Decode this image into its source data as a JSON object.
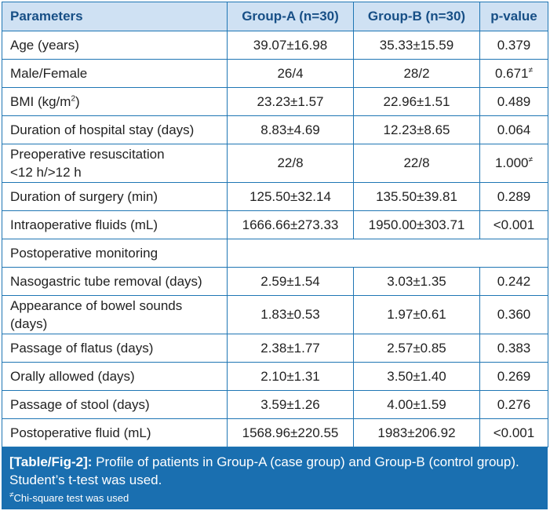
{
  "table": {
    "headers": [
      "Parameters",
      "Group-A (n=30)",
      "Group-B (n=30)",
      "p-value"
    ],
    "rows": [
      {
        "param": "Age (years)",
        "a": "39.07±16.98",
        "b": "35.33±15.59",
        "p": "0.379"
      },
      {
        "param": "Male/Female",
        "a": "26/4",
        "b": "28/2",
        "p": "0.671",
        "p_mark": "≠"
      },
      {
        "param_pre": "BMI (kg/m",
        "param_sup": "2",
        "param_post": ")",
        "a": "23.23±1.57",
        "b": "22.96±1.51",
        "p": "0.489"
      },
      {
        "param": "Duration of hospital stay (days)",
        "a": "8.83±4.69",
        "b": "12.23±8.65",
        "p": "0.064"
      },
      {
        "param_line1": "Preoperative resuscitation",
        "param_line2": "<12 h/>12 h",
        "a": "22/8",
        "b": "22/8",
        "p": "1.000",
        "p_mark": "≠"
      },
      {
        "param": "Duration of surgery (min)",
        "a": "125.50±32.14",
        "b": "135.50±39.81",
        "p": "0.289"
      },
      {
        "param": "Intraoperative fluids (mL)",
        "a": "1666.66±273.33",
        "b": "1950.00±303.71",
        "p": "<0.001"
      },
      {
        "section": "Postoperative monitoring"
      },
      {
        "param": "Nasogastric tube removal (days)",
        "a": "2.59±1.54",
        "b": "3.03±1.35",
        "p": "0.242"
      },
      {
        "param_line1": "Appearance of bowel sounds",
        "param_line2": "(days)",
        "a": "1.83±0.53",
        "b": "1.97±0.61",
        "p": "0.360"
      },
      {
        "param": "Passage of flatus (days)",
        "a": "2.38±1.77",
        "b": "2.57±0.85",
        "p": "0.383"
      },
      {
        "param": "Orally allowed (days)",
        "a": "2.10±1.31",
        "b": "3.50±1.40",
        "p": "0.269"
      },
      {
        "param": "Passage of stool (days)",
        "a": "3.59±1.26",
        "b": "4.00±1.59",
        "p": "0.276"
      },
      {
        "param": "Postoperative fluid (mL)",
        "a": "1568.96±220.55",
        "b": "1983±206.92",
        "p": "<0.001"
      }
    ]
  },
  "caption": {
    "tag": "[Table/Fig-2]:",
    "text": " Profile of patients in Group-A (case group) and Group-B (control group). Student’s t-test was used.",
    "note_mark": "≠",
    "note": "Chi-square test was used"
  },
  "colors": {
    "border": "#1f76b4",
    "header_bg": "#cfe1f3",
    "header_text": "#174f86",
    "caption_bg": "#1a6fb0"
  }
}
